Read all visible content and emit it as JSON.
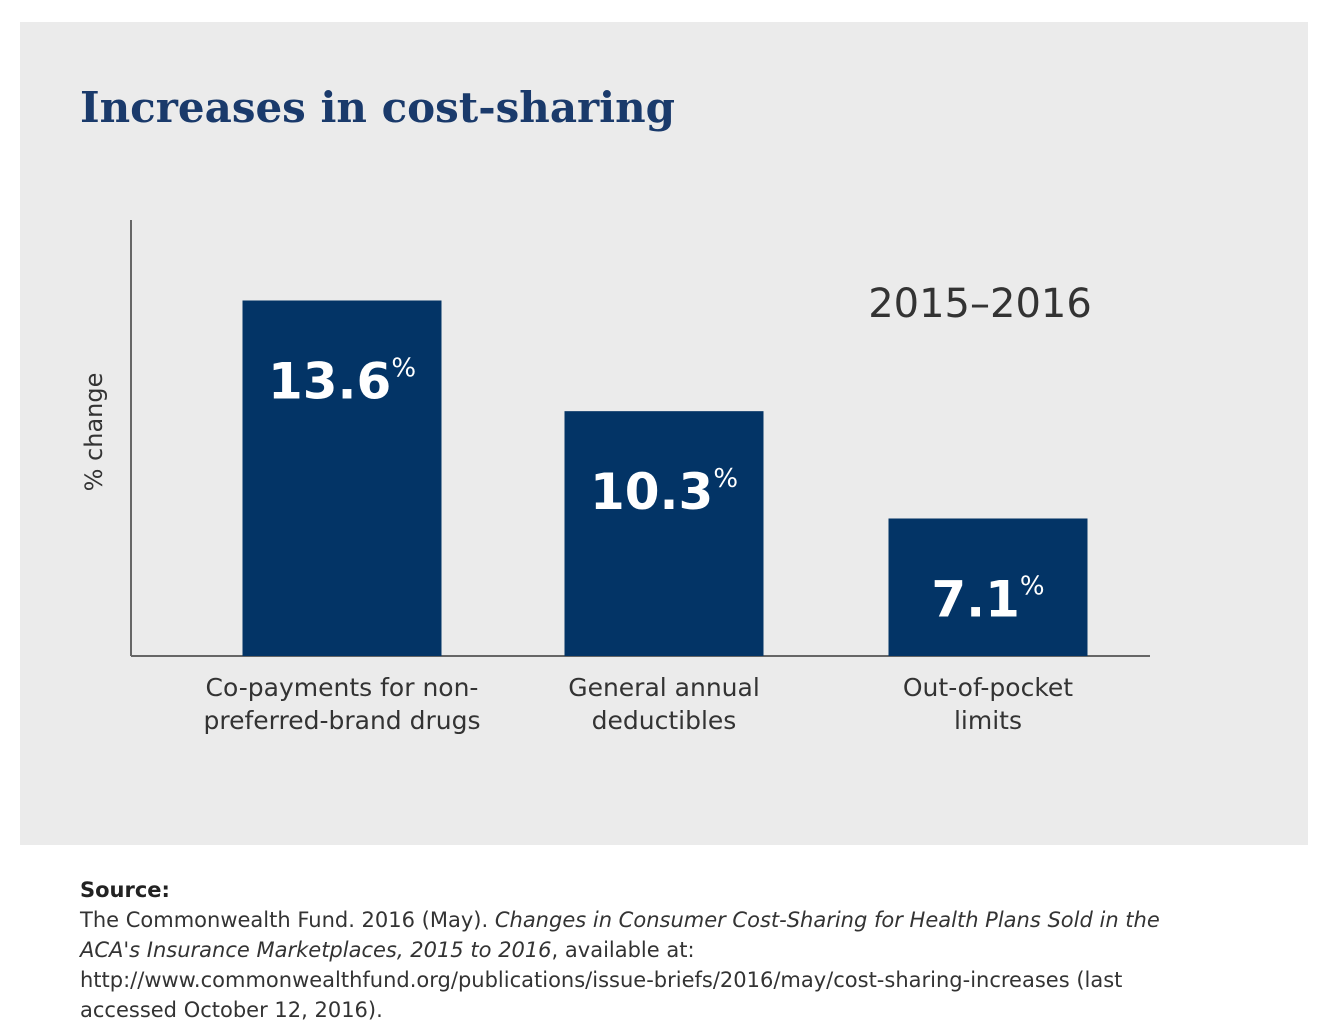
{
  "chart_data": {
    "type": "bar",
    "title": "Increases in cost-sharing",
    "annotation": "2015–2016",
    "y_label": "% change",
    "categories": [
      "Co-payments for non-preferred-brand drugs",
      "General annual deductibles",
      "Out-of-pocket limits"
    ],
    "values": [
      13.6,
      10.3,
      7.1
    ],
    "value_labels": [
      "13.6%",
      "10.3%",
      "7.1%"
    ],
    "color": "#033466",
    "ylim": [
      3,
      16
    ]
  },
  "source": {
    "label": "Source:",
    "text_before": "The Commonwealth Fund. 2016 (May). ",
    "title": "Changes in Consumer Cost-Sharing for Health Plans Sold in the ACA's Insurance Marketplaces, 2015 to 2016",
    "text_after": ", available at: http://www.commonwealthfund.org/publications/issue-briefs/2016/may/cost-sharing-increases (last accessed October 12, 2016)."
  }
}
